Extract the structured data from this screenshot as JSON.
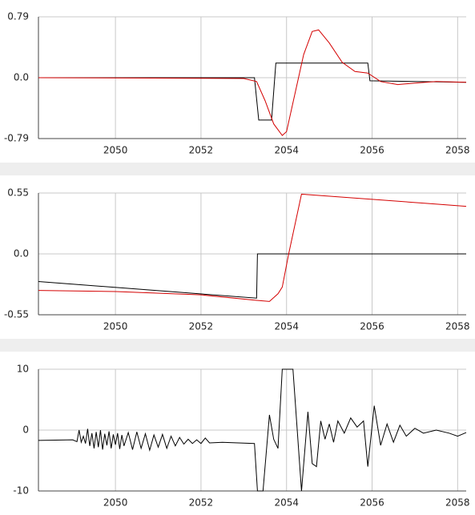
{
  "chart_data": [
    {
      "type": "line",
      "xlim": [
        2048.2,
        2058.2
      ],
      "xticks": [
        2050,
        2052,
        2054,
        2056,
        2058
      ],
      "ylim": [
        -0.79,
        0.79
      ],
      "yticks": [
        -0.79,
        {
          "value": 0,
          "label": "0.0"
        },
        0.79
      ],
      "grid": true,
      "series": [
        {
          "color": "#000000",
          "x": [
            2048.2,
            2053.25,
            2053.35,
            2053.65,
            2053.75,
            2055.9,
            2055.95,
            2057,
            2058.2
          ],
          "values": [
            0,
            0,
            -0.55,
            -0.55,
            0.19,
            0.19,
            -0.04,
            -0.05,
            -0.06
          ]
        },
        {
          "color": "#d40000",
          "x": [
            2048.2,
            2053.0,
            2053.3,
            2053.5,
            2053.7,
            2053.9,
            2054.0,
            2054.2,
            2054.4,
            2054.6,
            2054.75,
            2055.0,
            2055.3,
            2055.6,
            2055.9,
            2056.2,
            2056.6,
            2057.0,
            2057.5,
            2058.2
          ],
          "values": [
            0,
            -0.01,
            -0.05,
            -0.3,
            -0.6,
            -0.75,
            -0.7,
            -0.2,
            0.3,
            0.6,
            0.62,
            0.45,
            0.2,
            0.08,
            0.06,
            -0.05,
            -0.09,
            -0.07,
            -0.05,
            -0.06
          ]
        }
      ]
    },
    {
      "type": "line",
      "xlim": [
        2048.2,
        2058.2
      ],
      "xticks": [
        2050,
        2052,
        2054,
        2056,
        2058
      ],
      "ylim": [
        -0.55,
        0.55
      ],
      "yticks": [
        -0.55,
        {
          "value": 0,
          "label": "0.0"
        },
        0.55
      ],
      "grid": true,
      "series": [
        {
          "color": "#000000",
          "x": [
            2048.2,
            2053.3,
            2053.32,
            2058.2
          ],
          "values": [
            -0.25,
            -0.4,
            0,
            0
          ]
        },
        {
          "color": "#d40000",
          "x": [
            2048.2,
            2050,
            2052,
            2053.3,
            2053.6,
            2053.8,
            2053.9,
            2054.05,
            2054.35,
            2058.2
          ],
          "values": [
            -0.33,
            -0.34,
            -0.37,
            -0.42,
            -0.43,
            -0.36,
            -0.3,
            0,
            0.54,
            0.43
          ]
        }
      ]
    },
    {
      "type": "line",
      "xlim": [
        2048.2,
        2058.2
      ],
      "xticks": [
        2050,
        2052,
        2054,
        2056,
        2058
      ],
      "ylim": [
        -10,
        10
      ],
      "yticks": [
        -10,
        0,
        10
      ],
      "grid": true,
      "series": [
        {
          "color": "#000000",
          "x": [
            2048.2,
            2049.0,
            2049.1,
            2049.15,
            2049.2,
            2049.25,
            2049.3,
            2049.35,
            2049.4,
            2049.45,
            2049.5,
            2049.55,
            2049.6,
            2049.65,
            2049.7,
            2049.75,
            2049.8,
            2049.85,
            2049.9,
            2049.95,
            2050.0,
            2050.05,
            2050.1,
            2050.15,
            2050.2,
            2050.3,
            2050.4,
            2050.5,
            2050.6,
            2050.7,
            2050.8,
            2050.9,
            2051.0,
            2051.1,
            2051.2,
            2051.3,
            2051.4,
            2051.5,
            2051.6,
            2051.7,
            2051.8,
            2051.9,
            2052.0,
            2052.1,
            2052.2,
            2052.5,
            2053.25,
            2053.32,
            2053.45,
            2053.6,
            2053.7,
            2053.8,
            2053.9,
            2054.15,
            2054.35,
            2054.5,
            2054.6,
            2054.7,
            2054.8,
            2054.9,
            2055.0,
            2055.1,
            2055.2,
            2055.35,
            2055.5,
            2055.65,
            2055.8,
            2055.9,
            2056.05,
            2056.2,
            2056.35,
            2056.5,
            2056.65,
            2056.8,
            2057.0,
            2057.2,
            2057.5,
            2057.8,
            2058.0,
            2058.2
          ],
          "values": [
            -1.7,
            -1.6,
            -1.9,
            0.0,
            -2.0,
            -1.0,
            -2.2,
            0.2,
            -2.6,
            -0.5,
            -3.0,
            -0.3,
            -2.8,
            0.0,
            -3.2,
            -0.6,
            -2.5,
            -0.2,
            -3.0,
            -0.7,
            -2.4,
            -0.5,
            -3.1,
            -0.8,
            -2.6,
            -0.4,
            -3.2,
            -0.3,
            -3.0,
            -0.6,
            -3.3,
            -0.8,
            -2.8,
            -0.7,
            -3.0,
            -1.0,
            -2.6,
            -1.2,
            -2.3,
            -1.5,
            -2.2,
            -1.6,
            -2.2,
            -1.3,
            -2.1,
            -2.0,
            -2.2,
            -10,
            -10,
            2.5,
            -1.5,
            -3.0,
            10,
            10,
            -10,
            3.0,
            -5.5,
            -6.0,
            1.5,
            -1.5,
            1.0,
            -2.0,
            1.5,
            -0.5,
            2.0,
            0.5,
            1.5,
            -6.0,
            4.0,
            -2.5,
            1.0,
            -2.0,
            0.8,
            -1.0,
            0.3,
            -0.5,
            0.0,
            -0.5,
            -1.0,
            -0.4
          ]
        }
      ]
    }
  ]
}
